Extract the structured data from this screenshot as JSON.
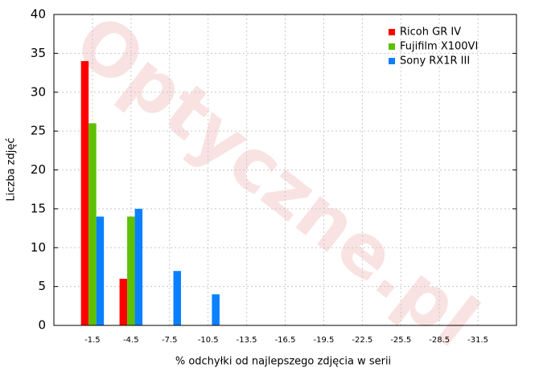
{
  "chart_data": {
    "type": "bar",
    "watermark": "Optyczne.pl",
    "xlabel": "% odchyłki od najlepszego zdjęcia w serii",
    "ylabel": "Liczba zdjęć",
    "categories": [
      "-1.5",
      "-4.5",
      "-7.5",
      "-10.5",
      "-13.5",
      "-16.5",
      "-19.5",
      "-22.5",
      "-25.5",
      "-28.5",
      "-31.5"
    ],
    "series": [
      {
        "name": "Ricoh GR IV",
        "color": "#ff0000",
        "values": [
          34,
          6,
          0,
          0,
          0,
          0,
          0,
          0,
          0,
          0,
          0
        ]
      },
      {
        "name": "Fujifilm X100VI",
        "color": "#5dc000",
        "values": [
          26,
          14,
          0,
          0,
          0,
          0,
          0,
          0,
          0,
          0,
          0
        ]
      },
      {
        "name": "Sony RX1R III",
        "color": "#0a80ff",
        "values": [
          14,
          15,
          7,
          4,
          0,
          0,
          0,
          0,
          0,
          0,
          0
        ]
      }
    ],
    "ylim": [
      0,
      40
    ],
    "yticks": [
      0,
      5,
      10,
      15,
      20,
      25,
      30,
      35,
      40
    ],
    "grid": true,
    "legend": "top-right"
  }
}
